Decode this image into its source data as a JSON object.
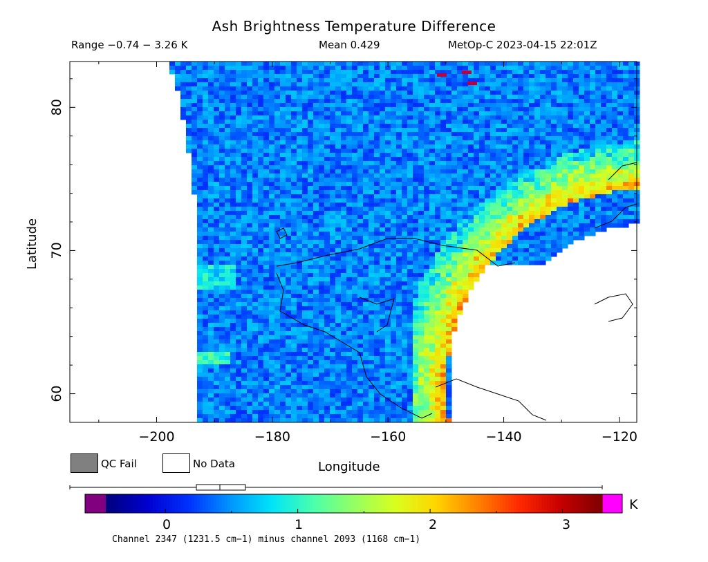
{
  "header": {
    "title": "Ash Brightness Temperature Difference",
    "range_text": "Range −0.74 − 3.26 K",
    "mean_text": "Mean 0.429",
    "source_text": "MetOp-C 2023-04-15 22:01Z"
  },
  "axes": {
    "xlabel": "Longitude",
    "ylabel": "Latitude",
    "x_ticks": [
      "−200",
      "−180",
      "−160",
      "−140",
      "−120"
    ],
    "x_tick_values": [
      -200,
      -180,
      -160,
      -140,
      -120
    ],
    "y_ticks": [
      "60",
      "70",
      "80"
    ],
    "y_tick_values": [
      60,
      70,
      80
    ],
    "xlim": [
      -215,
      -117
    ],
    "ylim": [
      58,
      83.2
    ]
  },
  "legend": {
    "qc_fail_label": "QC Fail",
    "no_data_label": "No Data",
    "qc_fail_color": "#808080",
    "no_data_color": "#ffffff"
  },
  "colorbar": {
    "unit": "K",
    "tick_labels": [
      "0",
      "1",
      "2",
      "3"
    ],
    "tick_values": [
      0,
      1,
      2,
      3
    ],
    "vmin": -0.45,
    "vmax": 3.3,
    "under_color": "#800080",
    "over_color": "#ff00ff",
    "colors": [
      "#00007f",
      "#0000d0",
      "#0032ff",
      "#0096ff",
      "#00e4f8",
      "#4affad",
      "#94ff63",
      "#d8ff1e",
      "#ffd500",
      "#ff8200",
      "#ff2a00",
      "#c80000",
      "#800000"
    ]
  },
  "footer": {
    "text": "Channel 2347 (1231.5 cm−1) minus channel 2093 (1168 cm−1)"
  }
}
